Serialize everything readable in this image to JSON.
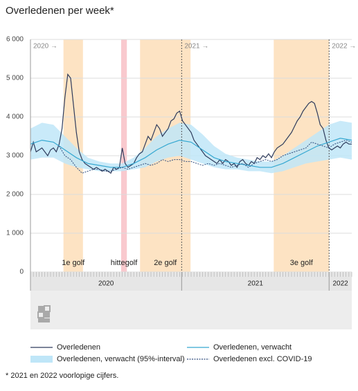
{
  "chart_data": {
    "type": "line",
    "title": "Overledenen per week*",
    "footnote": "* 2021 en 2022 voorlopige cijfers.",
    "xlim": [
      0,
      112
    ],
    "ylim": [
      0,
      6000
    ],
    "yticks": [
      0,
      {
        "value": 1000,
        "label": "1 000"
      },
      {
        "value": 2000,
        "label": "2 000"
      },
      {
        "value": 3000,
        "label": "3 000"
      },
      {
        "value": 4000,
        "label": "4 000"
      },
      {
        "value": 5000,
        "label": "5 000"
      },
      {
        "value": 6000,
        "label": "6 000"
      }
    ],
    "grid": true,
    "year_markers": [
      {
        "value": 0,
        "label": "2020 →"
      },
      {
        "value": 52.7,
        "label": "2021 →"
      },
      {
        "value": 104.1,
        "label": "2022 →"
      }
    ],
    "year_bands": [
      {
        "label": "2020",
        "start": 0,
        "end": 52.7
      },
      {
        "label": "2021",
        "start": 52.7,
        "end": 104.1
      },
      {
        "label": "2022",
        "start": 104.1,
        "end": 112
      }
    ],
    "periods": [
      {
        "label": "1e golf",
        "start": 11.5,
        "end": 18.3,
        "color": "#fde3c3"
      },
      {
        "label": "hittegolf",
        "start": 31.6,
        "end": 33.6,
        "color": "#f9c9ce"
      },
      {
        "label": "2e golf",
        "start": 38.2,
        "end": 55.8,
        "color": "#fde3c3"
      },
      {
        "label": "3e golf",
        "start": 84.8,
        "end": 104.1,
        "color": "#fde3c3"
      }
    ],
    "band": {
      "name": "Overledenen, verwacht (95%-interval)",
      "color": "#bfe6f8",
      "x": [
        0,
        4,
        8,
        12,
        16,
        20,
        24,
        28,
        32,
        36,
        40,
        44,
        48,
        52,
        56,
        60,
        64,
        68,
        72,
        76,
        80,
        84,
        88,
        92,
        96,
        100,
        104,
        108,
        112
      ],
      "lower": [
        2900,
        2950,
        2950,
        2800,
        2700,
        2650,
        2600,
        2600,
        2600,
        2650,
        2700,
        2850,
        2950,
        3000,
        2900,
        2800,
        2700,
        2650,
        2650,
        2600,
        2600,
        2550,
        2600,
        2700,
        2800,
        2850,
        2900,
        2950,
        2900
      ],
      "upper": [
        3700,
        3850,
        3800,
        3500,
        3200,
        2950,
        2850,
        2800,
        2800,
        2950,
        3200,
        3500,
        3700,
        3850,
        3800,
        3550,
        3250,
        3050,
        2950,
        2900,
        2850,
        2850,
        3000,
        3200,
        3400,
        3600,
        3800,
        3900,
        3850
      ]
    },
    "series": [
      {
        "name": "Overledenen",
        "color": "#2e3b5c",
        "dash": false,
        "x": [
          0,
          1,
          2,
          3,
          4,
          5,
          6,
          7,
          8,
          9,
          10,
          11,
          12,
          13,
          14,
          15,
          16,
          17,
          18,
          19,
          20,
          21,
          22,
          23,
          24,
          25,
          26,
          27,
          28,
          29,
          30,
          31,
          32,
          33,
          34,
          35,
          36,
          37,
          38,
          39,
          40,
          41,
          42,
          43,
          44,
          45,
          46,
          47,
          48,
          49,
          50,
          51,
          52,
          53,
          54,
          55,
          56,
          57,
          58,
          59,
          60,
          61,
          62,
          63,
          64,
          65,
          66,
          67,
          68,
          69,
          70,
          71,
          72,
          73,
          74,
          75,
          76,
          77,
          78,
          79,
          80,
          81,
          82,
          83,
          84,
          85,
          86,
          87,
          88,
          89,
          90,
          91,
          92,
          93,
          94,
          95,
          96,
          97,
          98,
          99,
          100,
          101,
          102,
          103,
          104,
          105,
          106,
          107,
          108,
          109,
          110,
          111,
          112
        ],
        "values": [
          3100,
          3350,
          3100,
          3150,
          3200,
          3100,
          3000,
          3150,
          3200,
          3100,
          3300,
          3700,
          4500,
          5100,
          5000,
          4300,
          3600,
          3100,
          2900,
          2800,
          2750,
          2700,
          2650,
          2700,
          2650,
          2600,
          2650,
          2600,
          2550,
          2700,
          2650,
          2700,
          3200,
          2800,
          2700,
          2750,
          2800,
          2950,
          3050,
          3100,
          3300,
          3500,
          3400,
          3600,
          3800,
          3700,
          3500,
          3600,
          3700,
          3900,
          3950,
          4100,
          4150,
          3900,
          3800,
          3700,
          3600,
          3400,
          3300,
          3200,
          3100,
          3000,
          2950,
          2900,
          2850,
          2800,
          2900,
          2800,
          2900,
          2850,
          2750,
          2800,
          2700,
          2850,
          2900,
          2800,
          2750,
          2850,
          2800,
          2950,
          2900,
          3000,
          2950,
          3050,
          2950,
          3100,
          3200,
          3250,
          3300,
          3400,
          3500,
          3600,
          3750,
          3900,
          4000,
          4150,
          4250,
          4350,
          4400,
          4350,
          4100,
          3800,
          3700,
          3400,
          3200,
          3150,
          3200,
          3250,
          3200,
          3300,
          3350,
          3300,
          3300
        ]
      },
      {
        "name": "Overledenen, verwacht",
        "color": "#35a8d1",
        "dash": false,
        "x": [
          0,
          4,
          8,
          12,
          16,
          20,
          24,
          28,
          32,
          36,
          40,
          44,
          48,
          52,
          56,
          60,
          64,
          68,
          72,
          76,
          80,
          84,
          88,
          92,
          96,
          100,
          104,
          108,
          112
        ],
        "values": [
          3300,
          3400,
          3350,
          3150,
          2950,
          2800,
          2750,
          2700,
          2700,
          2800,
          2950,
          3150,
          3300,
          3400,
          3350,
          3150,
          2950,
          2850,
          2800,
          2750,
          2700,
          2700,
          2800,
          2950,
          3100,
          3250,
          3350,
          3450,
          3400
        ]
      },
      {
        "name": "Overledenen excl. COVID-19",
        "color": "#2d4b7c",
        "dash": true,
        "x": [
          10,
          12,
          14,
          16,
          18,
          20,
          22,
          24,
          26,
          28,
          30,
          32,
          34,
          36,
          38,
          40,
          42,
          44,
          46,
          48,
          50,
          52,
          54,
          56,
          58,
          60,
          62,
          64,
          66,
          68,
          70,
          72,
          74,
          76,
          78,
          80,
          82,
          84,
          86,
          88,
          90,
          92,
          94,
          96,
          98,
          100,
          102,
          104,
          106,
          108,
          110,
          112
        ],
        "values": [
          3250,
          3000,
          2900,
          2700,
          2550,
          2600,
          2650,
          2650,
          2600,
          2600,
          2650,
          2700,
          2650,
          2700,
          2750,
          2800,
          2750,
          2800,
          2900,
          2850,
          2900,
          2900,
          2850,
          2850,
          2800,
          2750,
          2800,
          2750,
          2800,
          2750,
          2700,
          2750,
          2800,
          2700,
          2800,
          2850,
          2900,
          2850,
          2900,
          3000,
          3050,
          3100,
          3150,
          3200,
          3350,
          3300,
          3250,
          3200,
          3300,
          3350,
          3400,
          3350
        ]
      }
    ]
  }
}
